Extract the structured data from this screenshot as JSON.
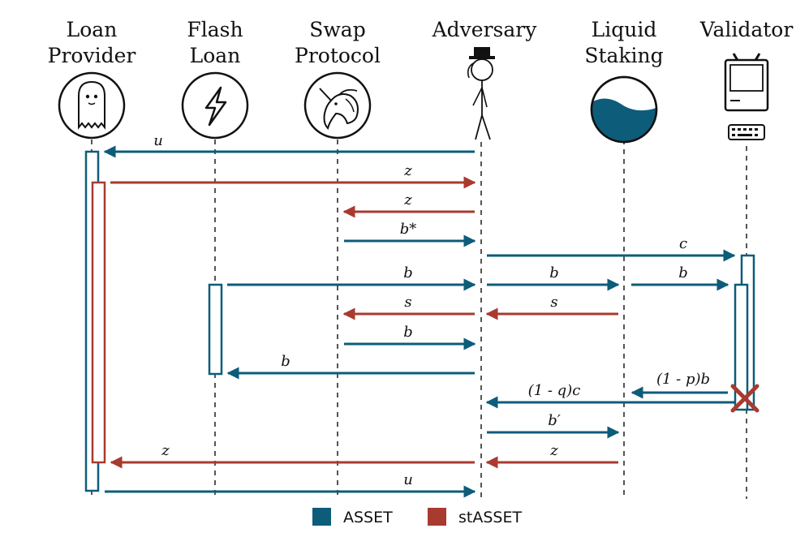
{
  "colors": {
    "asset": "#0d5c7a",
    "stasset": "#a93a2f",
    "cross": "#a93a2f"
  },
  "actors": [
    {
      "id": "loan",
      "lines": [
        "Loan",
        "Provider"
      ],
      "icon": "ghost-icon"
    },
    {
      "id": "flash",
      "lines": [
        "Flash",
        "Loan"
      ],
      "icon": "lightning-icon"
    },
    {
      "id": "swap",
      "lines": [
        "Swap",
        "Protocol"
      ],
      "icon": "unicorn-icon"
    },
    {
      "id": "adv",
      "lines": [
        "Adversary",
        ""
      ],
      "icon": "stick-figure-icon"
    },
    {
      "id": "liquid",
      "lines": [
        "Liquid",
        "Staking"
      ],
      "icon": "liquid-ball-icon"
    },
    {
      "id": "validator",
      "lines": [
        "Validator",
        ""
      ],
      "icon": "computer-icon"
    }
  ],
  "messages": [
    {
      "label": "u",
      "kind": "asset"
    },
    {
      "label": "z",
      "kind": "stasset"
    },
    {
      "label": "z",
      "kind": "stasset"
    },
    {
      "label": "b*",
      "kind": "asset"
    },
    {
      "label": "c",
      "kind": "asset"
    },
    {
      "label": "b",
      "kind": "asset"
    },
    {
      "label": "b",
      "kind": "asset"
    },
    {
      "label": "b",
      "kind": "asset"
    },
    {
      "label": "s",
      "kind": "stasset"
    },
    {
      "label": "s",
      "kind": "stasset"
    },
    {
      "label": "b",
      "kind": "asset"
    },
    {
      "label": "b",
      "kind": "asset"
    },
    {
      "label": "(1 - p)b",
      "kind": "asset"
    },
    {
      "label": "(1 - q)c",
      "kind": "asset"
    },
    {
      "label": "b′",
      "kind": "asset"
    },
    {
      "label": "z",
      "kind": "stasset"
    },
    {
      "label": "z",
      "kind": "stasset"
    },
    {
      "label": "u",
      "kind": "asset"
    }
  ],
  "legend": [
    {
      "label": "ASSET",
      "kind": "asset"
    },
    {
      "label": "stASSET",
      "kind": "stasset"
    }
  ]
}
